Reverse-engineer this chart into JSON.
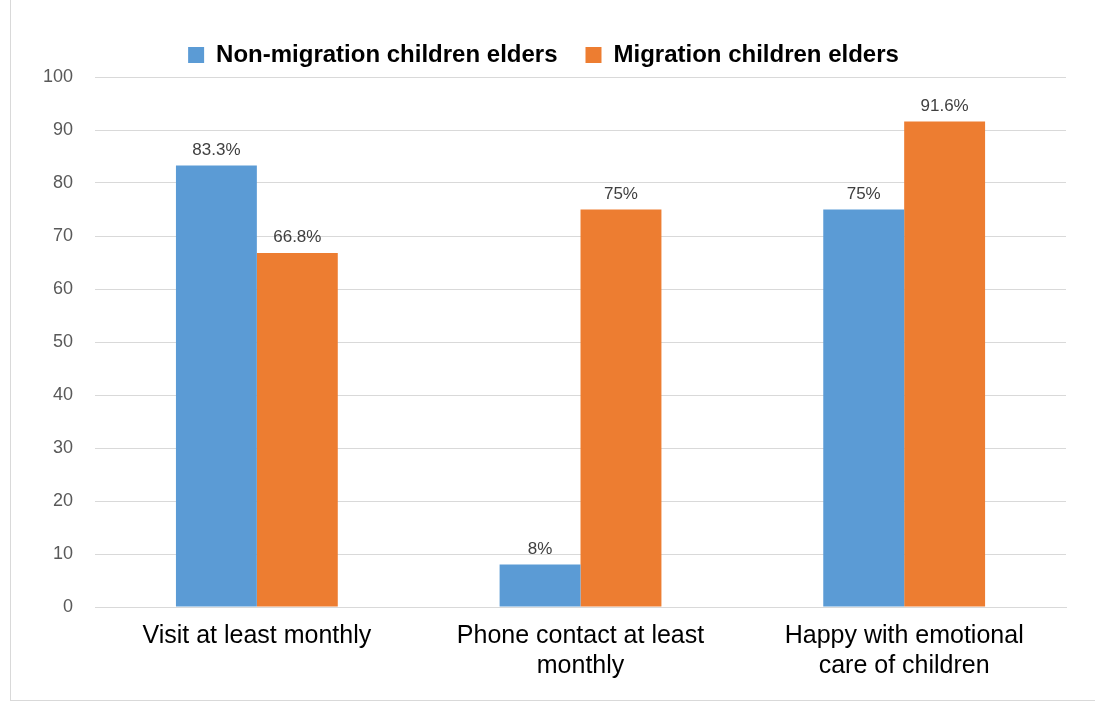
{
  "chart_data": {
    "type": "bar",
    "categories": [
      "Visit at least monthly",
      "Phone contact at least monthly",
      "Happy with emotional care of children"
    ],
    "series": [
      {
        "name": "Non-migration children elders",
        "color": "#5b9bd5",
        "values": [
          83.3,
          8,
          75
        ],
        "value_labels": [
          "83.3%",
          "8%",
          "75%"
        ]
      },
      {
        "name": "Migration children elders",
        "color": "#ed7d31",
        "values": [
          66.8,
          75,
          91.6
        ],
        "value_labels": [
          "66.8%",
          "75%",
          "91.6%"
        ]
      }
    ],
    "ylim": [
      0,
      100
    ],
    "yticks": [
      0,
      10,
      20,
      30,
      40,
      50,
      60,
      70,
      80,
      90,
      100
    ],
    "grid": "y",
    "legend": "top"
  }
}
